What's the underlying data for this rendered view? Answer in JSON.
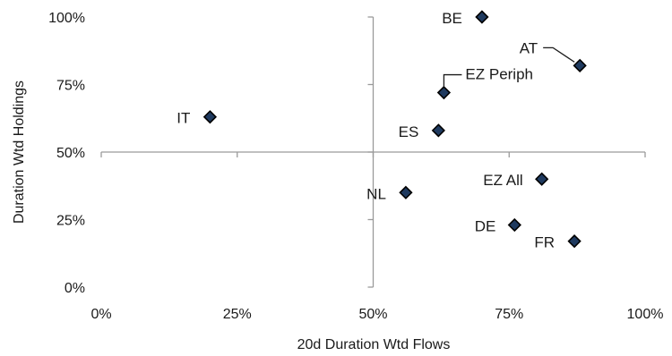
{
  "chart_data": {
    "type": "scatter",
    "title": "",
    "xlabel": "20d Duration Wtd Flows",
    "ylabel": "Duration Wtd Holdings",
    "xlim": [
      0,
      1
    ],
    "ylim": [
      0,
      1
    ],
    "x_ticks": [
      0,
      0.25,
      0.5,
      0.75,
      1
    ],
    "x_tick_labels": [
      "0%",
      "25%",
      "50%",
      "75%",
      "100%"
    ],
    "y_ticks": [
      0,
      0.25,
      0.5,
      0.75,
      1
    ],
    "y_tick_labels": [
      "0%",
      "25%",
      "50%",
      "75%",
      "100%"
    ],
    "crosshair": {
      "x": 0.5,
      "y": 0.5
    },
    "grid": false,
    "legend": false,
    "marker": "diamond",
    "marker_color": "#1f3a5f",
    "points": [
      {
        "label": "BE",
        "x": 0.7,
        "y": 1.0
      },
      {
        "label": "AT",
        "x": 0.88,
        "y": 0.82
      },
      {
        "label": "EZ Periph",
        "x": 0.63,
        "y": 0.72
      },
      {
        "label": "IT",
        "x": 0.2,
        "y": 0.63
      },
      {
        "label": "ES",
        "x": 0.62,
        "y": 0.58
      },
      {
        "label": "EZ All",
        "x": 0.81,
        "y": 0.4
      },
      {
        "label": "NL",
        "x": 0.56,
        "y": 0.35
      },
      {
        "label": "DE",
        "x": 0.76,
        "y": 0.23
      },
      {
        "label": "FR",
        "x": 0.87,
        "y": 0.17
      }
    ]
  }
}
